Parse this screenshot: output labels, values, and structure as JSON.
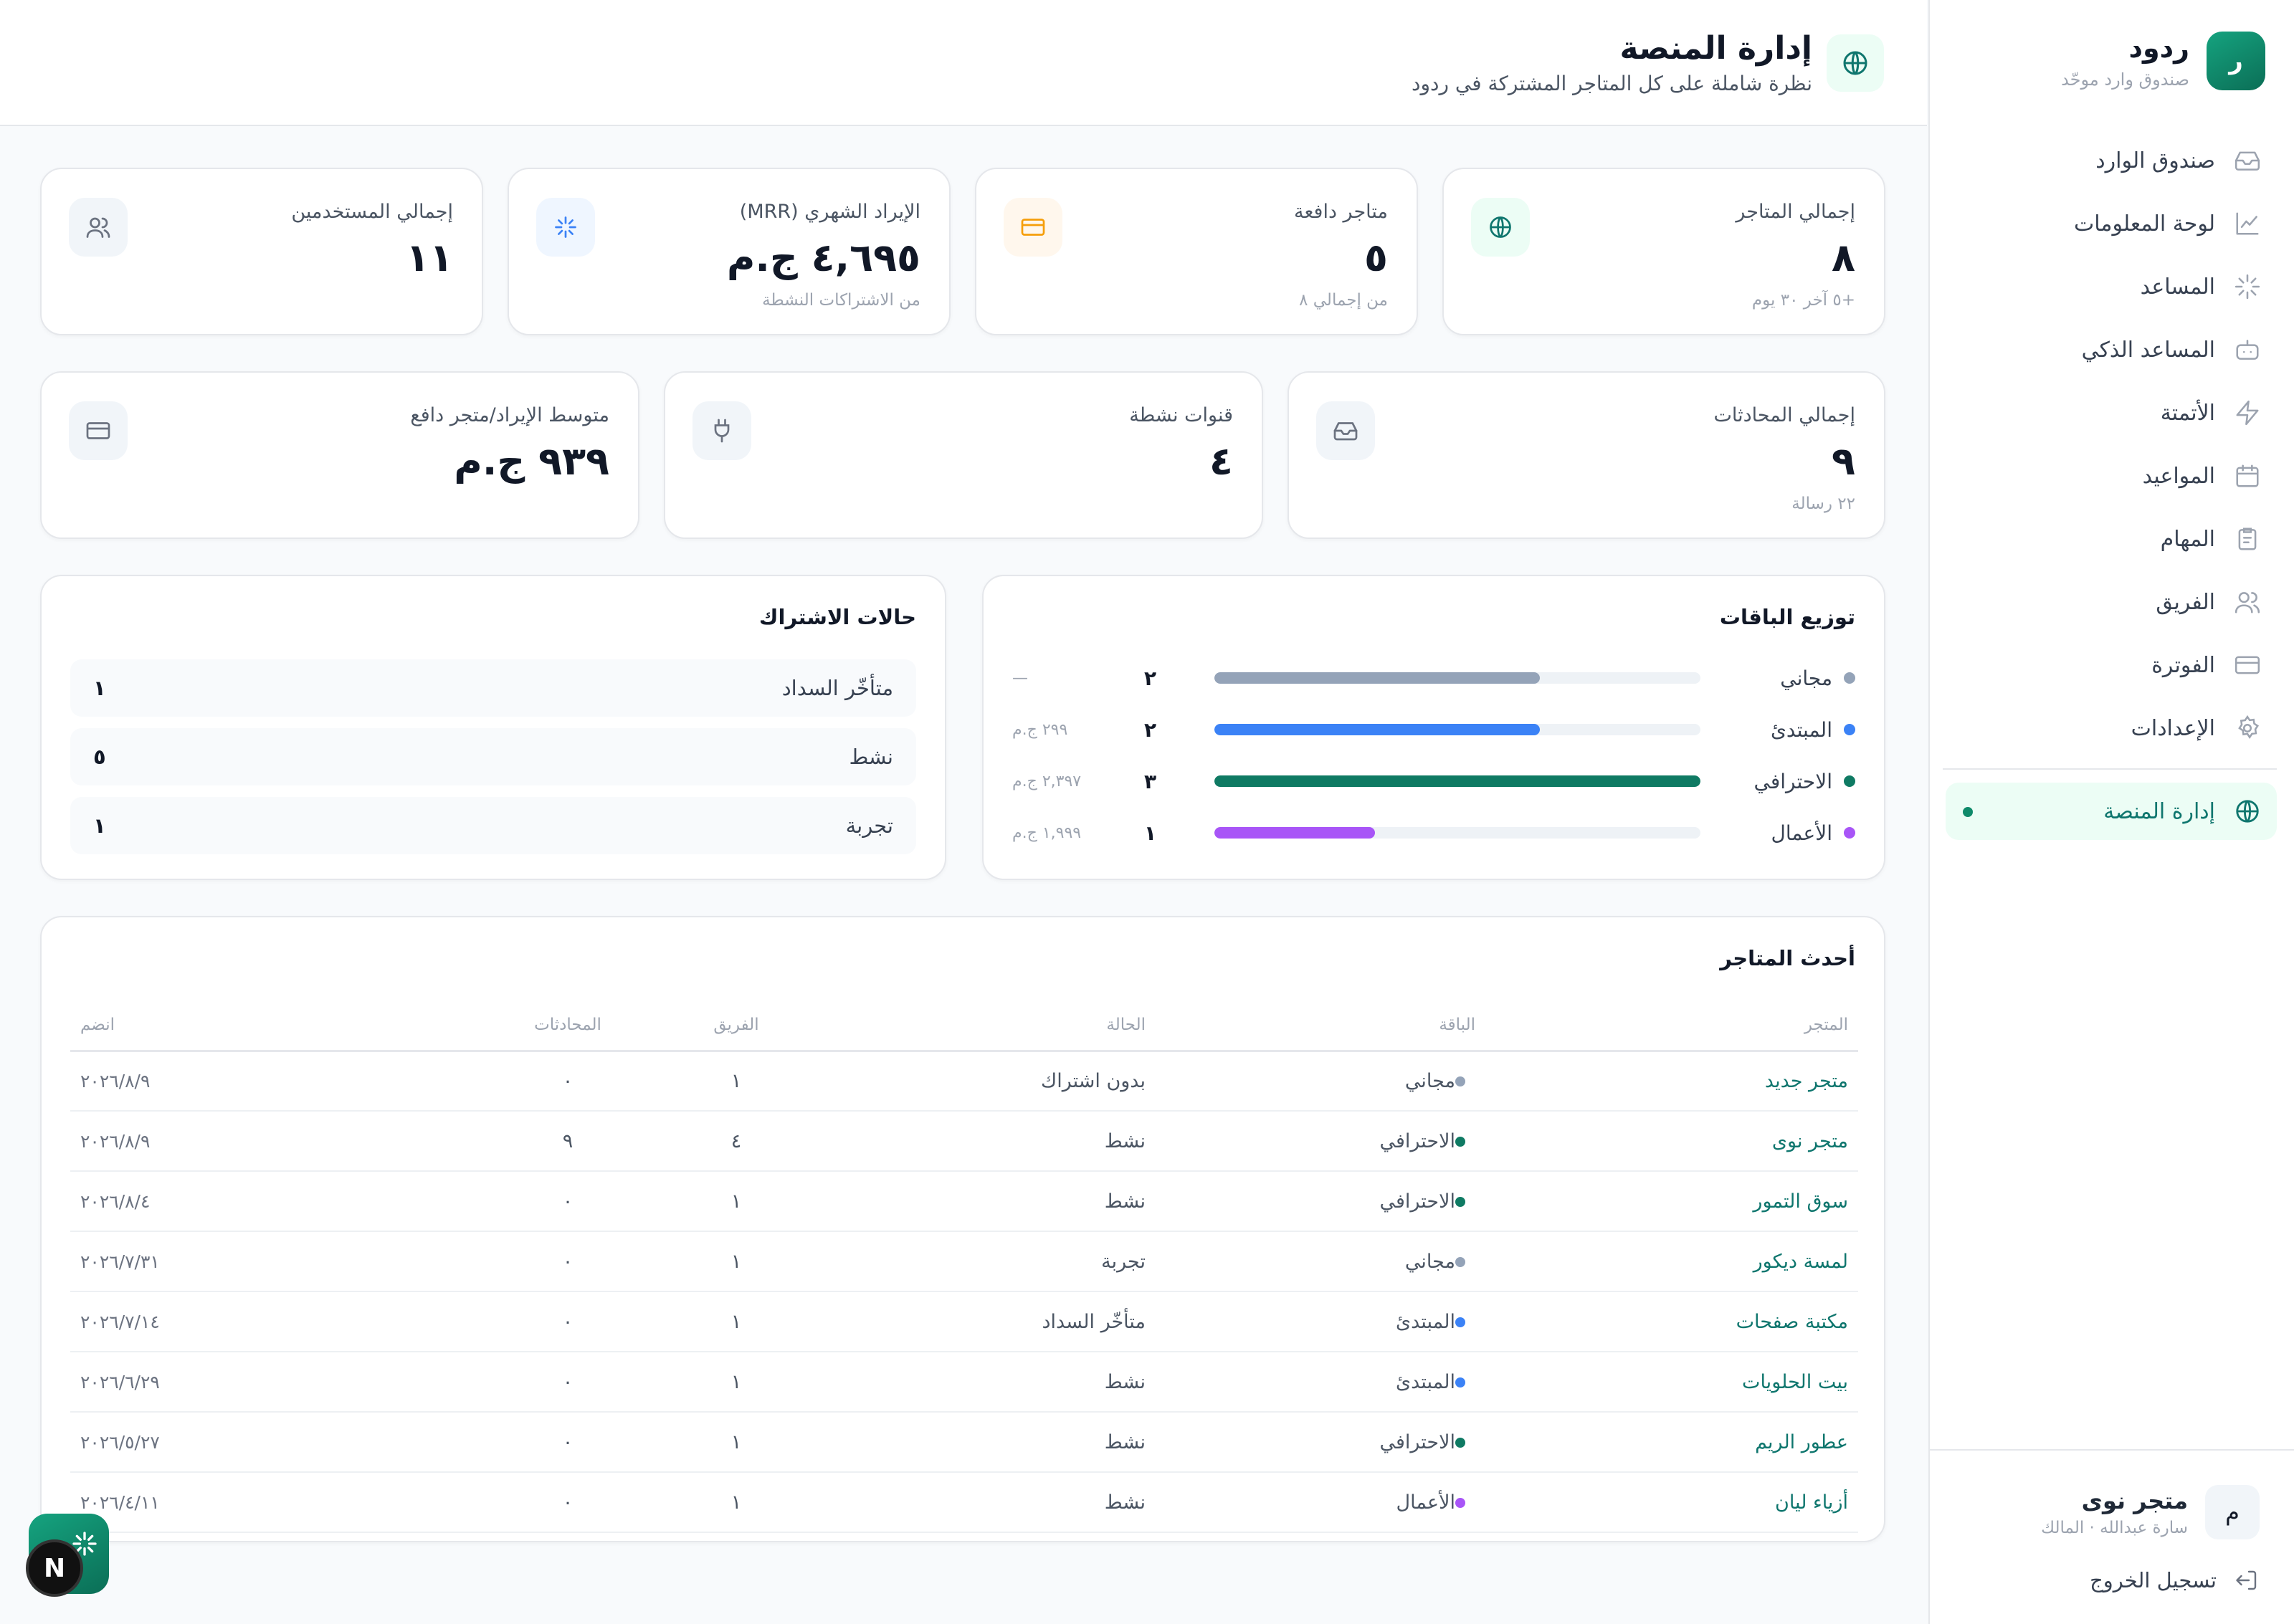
{
  "brand": {
    "name": "ردود",
    "subtitle": "صندوق وارد موحّد",
    "logo_letter": "ر"
  },
  "nav": {
    "items": [
      {
        "label": "صندوق الوارد",
        "icon": "inbox-icon"
      },
      {
        "label": "لوحة المعلومات",
        "icon": "chart-line-icon"
      },
      {
        "label": "المساعد",
        "icon": "sparkle-icon"
      },
      {
        "label": "المساعد الذكي",
        "icon": "bot-icon"
      },
      {
        "label": "الأتمتة",
        "icon": "lightning-icon"
      },
      {
        "label": "المواعيد",
        "icon": "calendar-icon"
      },
      {
        "label": "المهام",
        "icon": "clipboard-icon"
      },
      {
        "label": "الفريق",
        "icon": "users-icon"
      },
      {
        "label": "الفوترة",
        "icon": "credit-card-icon"
      },
      {
        "label": "الإعدادات",
        "icon": "gear-icon"
      }
    ],
    "active": {
      "label": "إدارة المنصة",
      "icon": "globe-icon"
    }
  },
  "account": {
    "store_name": "متجر نوى",
    "user": "سارة عبدالله · المالك",
    "avatar_letter": "م",
    "logout_label": "تسجيل الخروج"
  },
  "header": {
    "title": "إدارة المنصة",
    "subtitle": "نظرة شاملة على كل المتاجر المشتركة في ردود"
  },
  "stats_row1": [
    {
      "label": "إجمالي المتاجر",
      "value": "٨",
      "note": "+٥ آخر ٣٠ يوم",
      "icon": "globe-icon"
    },
    {
      "label": "متاجر دافعة",
      "value": "٥",
      "note": "من إجمالي ٨",
      "icon": "credit-card-icon"
    },
    {
      "label": "الإيراد الشهري (MRR)",
      "value": "٤,٦٩٥ ج.م",
      "note": "من الاشتراكات النشطة",
      "icon": "sparkle-icon"
    },
    {
      "label": "إجمالي المستخدمين",
      "value": "١١",
      "note": "",
      "icon": "users-icon"
    }
  ],
  "stats_row2": [
    {
      "label": "إجمالي المحادثات",
      "value": "٩",
      "note": "٢٢ رسالة",
      "icon": "inbox-icon"
    },
    {
      "label": "قنوات نشطة",
      "value": "٤",
      "note": "",
      "icon": "plug-icon"
    },
    {
      "label": "متوسط الإيراد/متجر دافع",
      "value": "٩٣٩ ج.م",
      "note": "",
      "icon": "credit-card-icon"
    }
  ],
  "plans": {
    "title": "توزيع الباقات",
    "rows": [
      {
        "name": "مجاني",
        "count": "٢",
        "revenue": "—",
        "share": 0.67,
        "color": "#94a3b8"
      },
      {
        "name": "المبتدئ",
        "count": "٢",
        "revenue": "٢٩٩ ج.م",
        "share": 0.67,
        "color": "#3b82f6"
      },
      {
        "name": "الاحترافي",
        "count": "٣",
        "revenue": "٢,٣٩٧ ج.م",
        "share": 1.0,
        "color": "#0f7a63"
      },
      {
        "name": "الأعمال",
        "count": "١",
        "revenue": "١,٩٩٩ ج.م",
        "share": 0.33,
        "color": "#a855f7"
      }
    ]
  },
  "subscriptions": {
    "title": "حالات الاشتراك",
    "rows": [
      {
        "label": "متأخّر السداد",
        "value": "١"
      },
      {
        "label": "نشط",
        "value": "٥"
      },
      {
        "label": "تجربة",
        "value": "١"
      }
    ]
  },
  "stores": {
    "title": "أحدث المتاجر",
    "columns": {
      "store": "المتجر",
      "plan": "الباقة",
      "status": "الحالة",
      "team": "الفريق",
      "conversations": "المحادثات",
      "joined": "انضم"
    },
    "rows": [
      {
        "store": "متجر جديد",
        "plan": "مجاني",
        "plan_color": "#94a3b8",
        "status": "بدون اشتراك",
        "team": "١",
        "conversations": "٠",
        "joined": "٢٠٢٦/٨/٩"
      },
      {
        "store": "متجر نوى",
        "plan": "الاحترافي",
        "plan_color": "#0f7a63",
        "status": "نشط",
        "team": "٤",
        "conversations": "٩",
        "joined": "٢٠٢٦/٨/٩"
      },
      {
        "store": "سوق التمور",
        "plan": "الاحترافي",
        "plan_color": "#0f7a63",
        "status": "نشط",
        "team": "١",
        "conversations": "٠",
        "joined": "٢٠٢٦/٨/٤"
      },
      {
        "store": "لمسة ديكور",
        "plan": "مجاني",
        "plan_color": "#94a3b8",
        "status": "تجربة",
        "team": "١",
        "conversations": "٠",
        "joined": "٢٠٢٦/٧/٣١"
      },
      {
        "store": "مكتبة صفحات",
        "plan": "المبتدئ",
        "plan_color": "#3b82f6",
        "status": "متأخّر السداد",
        "team": "١",
        "conversations": "٠",
        "joined": "٢٠٢٦/٧/١٤"
      },
      {
        "store": "بيت الحلويات",
        "plan": "المبتدئ",
        "plan_color": "#3b82f6",
        "status": "نشط",
        "team": "١",
        "conversations": "٠",
        "joined": "٢٠٢٦/٦/٢٩"
      },
      {
        "store": "عطور الريم",
        "plan": "الاحترافي",
        "plan_color": "#0f7a63",
        "status": "نشط",
        "team": "١",
        "conversations": "٠",
        "joined": "٢٠٢٦/٥/٢٧"
      },
      {
        "store": "أزياء ليان",
        "plan": "الأعمال",
        "plan_color": "#a855f7",
        "status": "نشط",
        "team": "١",
        "conversations": "٠",
        "joined": "٢٠٢٦/٤/١١"
      }
    ]
  },
  "dev_badge": {
    "letter": "N"
  },
  "colors": {
    "accent": "#0f766e",
    "brand": "#15a37f"
  }
}
